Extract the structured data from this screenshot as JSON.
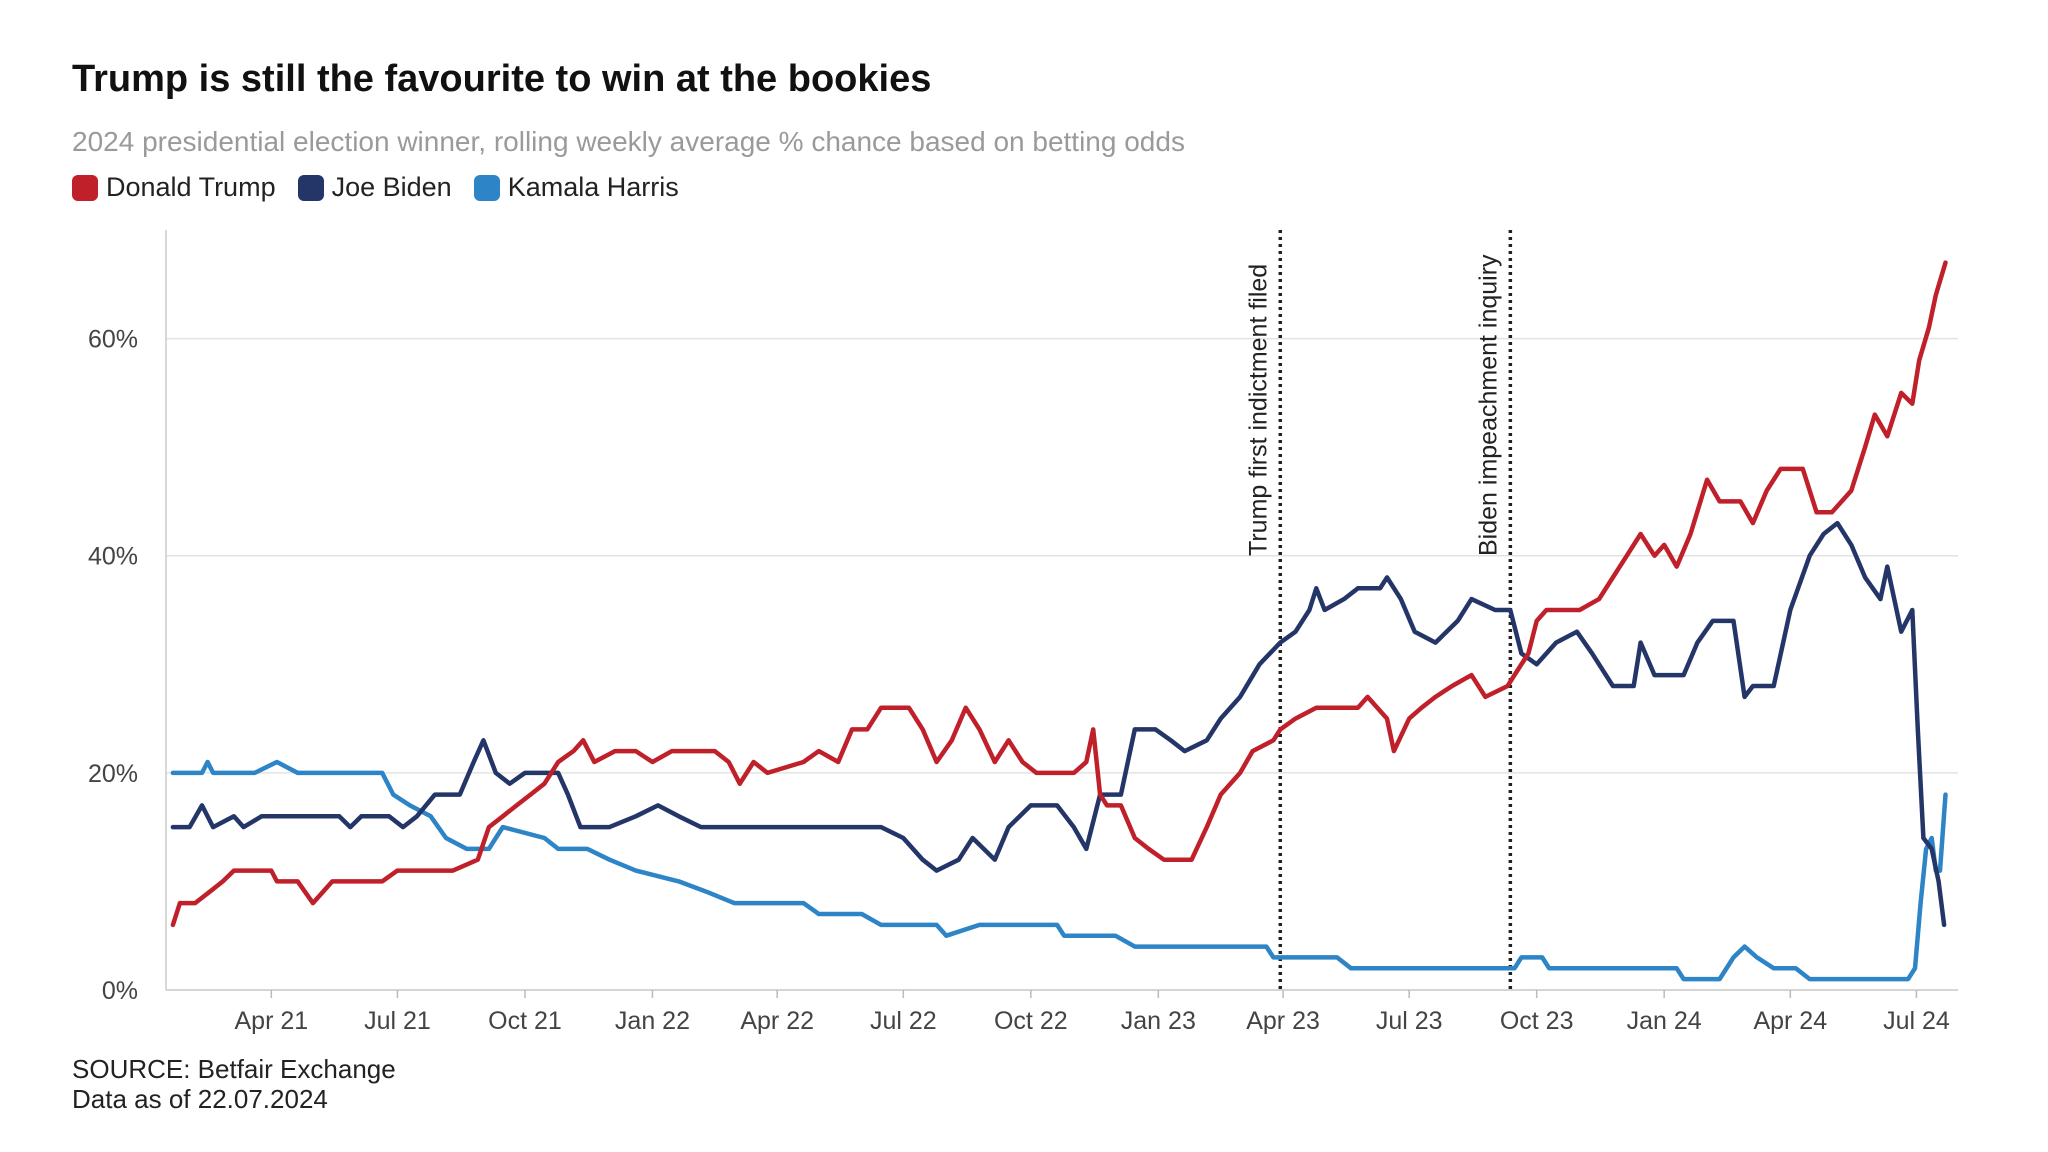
{
  "title": "Trump is still the favourite to win at the bookies",
  "subtitle": "2024 presidential election winner, rolling weekly average % chance based on betting odds",
  "source_line1": "SOURCE: Betfair Exchange",
  "source_line2": "Data as of 22.07.2024",
  "colors": {
    "trump": "#c0202a",
    "biden": "#243568",
    "harris": "#2d84c6"
  },
  "chart_data": {
    "type": "line",
    "title": "Trump is still the favourite to win at the bookies",
    "subtitle": "2024 presidential election winner, rolling weekly average % chance based on betting odds",
    "x_type": "date",
    "xlim": [
      "2021-01-15",
      "2024-07-31"
    ],
    "ylim": [
      0,
      70
    ],
    "yticks": [
      0,
      20,
      40,
      60
    ],
    "ytick_labels": [
      "0%",
      "20%",
      "40%",
      "60%"
    ],
    "xticks": [
      "2021-04-01",
      "2021-07-01",
      "2021-10-01",
      "2022-01-01",
      "2022-04-01",
      "2022-07-01",
      "2022-10-01",
      "2023-01-01",
      "2023-04-01",
      "2023-07-01",
      "2023-10-01",
      "2024-01-01",
      "2024-04-01",
      "2024-07-01"
    ],
    "xtick_labels": [
      "Apr 21",
      "Jul 21",
      "Oct 21",
      "Jan 22",
      "Apr 22",
      "Jul 22",
      "Oct 22",
      "Jan 23",
      "Apr 23",
      "Jul 23",
      "Oct 23",
      "Jan 24",
      "Apr 24",
      "Jul 24"
    ],
    "grid": "horizontal",
    "legend_position": "top-left",
    "annotations": [
      {
        "date": "2023-03-30",
        "label": "Trump first indictment filed"
      },
      {
        "date": "2023-09-12",
        "label": "Biden impeachment inquiry"
      }
    ],
    "series": [
      {
        "name": "Donald Trump",
        "color": "#c0202a",
        "points": [
          [
            "2021-01-20",
            6
          ],
          [
            "2021-01-25",
            8
          ],
          [
            "2021-02-05",
            8
          ],
          [
            "2021-02-15",
            9
          ],
          [
            "2021-02-25",
            10
          ],
          [
            "2021-03-05",
            11
          ],
          [
            "2021-04-01",
            11
          ],
          [
            "2021-04-05",
            10
          ],
          [
            "2021-04-20",
            10
          ],
          [
            "2021-05-01",
            8
          ],
          [
            "2021-05-15",
            10
          ],
          [
            "2021-06-01",
            10
          ],
          [
            "2021-06-20",
            10
          ],
          [
            "2021-07-01",
            11
          ],
          [
            "2021-07-25",
            11
          ],
          [
            "2021-08-10",
            11
          ],
          [
            "2021-08-28",
            12
          ],
          [
            "2021-09-05",
            15
          ],
          [
            "2021-09-15",
            16
          ],
          [
            "2021-09-25",
            17
          ],
          [
            "2021-10-05",
            18
          ],
          [
            "2021-10-15",
            19
          ],
          [
            "2021-10-25",
            21
          ],
          [
            "2021-11-05",
            22
          ],
          [
            "2021-11-12",
            23
          ],
          [
            "2021-11-20",
            21
          ],
          [
            "2021-12-05",
            22
          ],
          [
            "2021-12-20",
            22
          ],
          [
            "2022-01-01",
            21
          ],
          [
            "2022-01-15",
            22
          ],
          [
            "2022-02-15",
            22
          ],
          [
            "2022-02-25",
            21
          ],
          [
            "2022-03-05",
            19
          ],
          [
            "2022-03-15",
            21
          ],
          [
            "2022-03-25",
            20
          ],
          [
            "2022-04-20",
            21
          ],
          [
            "2022-05-01",
            22
          ],
          [
            "2022-05-15",
            21
          ],
          [
            "2022-05-25",
            24
          ],
          [
            "2022-06-05",
            24
          ],
          [
            "2022-06-15",
            26
          ],
          [
            "2022-07-05",
            26
          ],
          [
            "2022-07-15",
            24
          ],
          [
            "2022-07-25",
            21
          ],
          [
            "2022-08-05",
            23
          ],
          [
            "2022-08-15",
            26
          ],
          [
            "2022-08-25",
            24
          ],
          [
            "2022-09-05",
            21
          ],
          [
            "2022-09-15",
            23
          ],
          [
            "2022-09-25",
            21
          ],
          [
            "2022-10-05",
            20
          ],
          [
            "2022-10-20",
            20
          ],
          [
            "2022-11-01",
            20
          ],
          [
            "2022-11-10",
            21
          ],
          [
            "2022-11-15",
            24
          ],
          [
            "2022-11-20",
            18
          ],
          [
            "2022-11-25",
            17
          ],
          [
            "2022-12-05",
            17
          ],
          [
            "2022-12-15",
            14
          ],
          [
            "2022-12-25",
            13
          ],
          [
            "2023-01-05",
            12
          ],
          [
            "2023-01-25",
            12
          ],
          [
            "2023-02-05",
            15
          ],
          [
            "2023-02-15",
            18
          ],
          [
            "2023-03-01",
            20
          ],
          [
            "2023-03-10",
            22
          ],
          [
            "2023-03-25",
            23
          ],
          [
            "2023-03-30",
            24
          ],
          [
            "2023-04-10",
            25
          ],
          [
            "2023-04-25",
            26
          ],
          [
            "2023-05-25",
            26
          ],
          [
            "2023-06-01",
            27
          ],
          [
            "2023-06-15",
            25
          ],
          [
            "2023-06-20",
            22
          ],
          [
            "2023-07-01",
            25
          ],
          [
            "2023-07-10",
            26
          ],
          [
            "2023-07-20",
            27
          ],
          [
            "2023-08-01",
            28
          ],
          [
            "2023-08-15",
            29
          ],
          [
            "2023-08-25",
            27
          ],
          [
            "2023-09-10",
            28
          ],
          [
            "2023-09-15",
            29
          ],
          [
            "2023-09-25",
            31
          ],
          [
            "2023-10-01",
            34
          ],
          [
            "2023-10-08",
            35
          ],
          [
            "2023-11-01",
            35
          ],
          [
            "2023-11-15",
            36
          ],
          [
            "2023-11-25",
            38
          ],
          [
            "2023-12-05",
            40
          ],
          [
            "2023-12-15",
            42
          ],
          [
            "2023-12-25",
            40
          ],
          [
            "2024-01-01",
            41
          ],
          [
            "2024-01-10",
            39
          ],
          [
            "2024-01-20",
            42
          ],
          [
            "2024-02-01",
            47
          ],
          [
            "2024-02-10",
            45
          ],
          [
            "2024-02-25",
            45
          ],
          [
            "2024-03-05",
            43
          ],
          [
            "2024-03-15",
            46
          ],
          [
            "2024-03-25",
            48
          ],
          [
            "2024-04-10",
            48
          ],
          [
            "2024-04-20",
            44
          ],
          [
            "2024-05-01",
            44
          ],
          [
            "2024-05-15",
            46
          ],
          [
            "2024-05-25",
            50
          ],
          [
            "2024-06-01",
            53
          ],
          [
            "2024-06-10",
            51
          ],
          [
            "2024-06-20",
            55
          ],
          [
            "2024-06-28",
            54
          ],
          [
            "2024-07-03",
            58
          ],
          [
            "2024-07-10",
            61
          ],
          [
            "2024-07-15",
            64
          ],
          [
            "2024-07-22",
            67
          ]
        ]
      },
      {
        "name": "Joe Biden",
        "color": "#243568",
        "points": [
          [
            "2021-01-20",
            15
          ],
          [
            "2021-02-01",
            15
          ],
          [
            "2021-02-10",
            17
          ],
          [
            "2021-02-18",
            15
          ],
          [
            "2021-03-05",
            16
          ],
          [
            "2021-03-12",
            15
          ],
          [
            "2021-03-25",
            16
          ],
          [
            "2021-05-20",
            16
          ],
          [
            "2021-05-28",
            15
          ],
          [
            "2021-06-05",
            16
          ],
          [
            "2021-06-25",
            16
          ],
          [
            "2021-07-05",
            15
          ],
          [
            "2021-07-15",
            16
          ],
          [
            "2021-07-28",
            18
          ],
          [
            "2021-08-15",
            18
          ],
          [
            "2021-08-25",
            21
          ],
          [
            "2021-09-01",
            23
          ],
          [
            "2021-09-10",
            20
          ],
          [
            "2021-09-20",
            19
          ],
          [
            "2021-10-01",
            20
          ],
          [
            "2021-10-25",
            20
          ],
          [
            "2021-11-01",
            18
          ],
          [
            "2021-11-10",
            15
          ],
          [
            "2021-12-01",
            15
          ],
          [
            "2021-12-20",
            16
          ],
          [
            "2022-01-05",
            17
          ],
          [
            "2022-01-20",
            16
          ],
          [
            "2022-02-05",
            15
          ],
          [
            "2022-04-15",
            15
          ],
          [
            "2022-05-01",
            15
          ],
          [
            "2022-06-15",
            15
          ],
          [
            "2022-07-01",
            14
          ],
          [
            "2022-07-15",
            12
          ],
          [
            "2022-07-25",
            11
          ],
          [
            "2022-08-10",
            12
          ],
          [
            "2022-08-20",
            14
          ],
          [
            "2022-09-05",
            12
          ],
          [
            "2022-09-15",
            15
          ],
          [
            "2022-10-01",
            17
          ],
          [
            "2022-10-20",
            17
          ],
          [
            "2022-11-01",
            15
          ],
          [
            "2022-11-10",
            13
          ],
          [
            "2022-11-20",
            18
          ],
          [
            "2022-12-05",
            18
          ],
          [
            "2022-12-15",
            24
          ],
          [
            "2022-12-30",
            24
          ],
          [
            "2023-01-10",
            23
          ],
          [
            "2023-01-20",
            22
          ],
          [
            "2023-02-05",
            23
          ],
          [
            "2023-02-15",
            25
          ],
          [
            "2023-03-01",
            27
          ],
          [
            "2023-03-15",
            30
          ],
          [
            "2023-03-30",
            32
          ],
          [
            "2023-04-10",
            33
          ],
          [
            "2023-04-20",
            35
          ],
          [
            "2023-04-25",
            37
          ],
          [
            "2023-05-01",
            35
          ],
          [
            "2023-05-15",
            36
          ],
          [
            "2023-05-25",
            37
          ],
          [
            "2023-06-10",
            37
          ],
          [
            "2023-06-15",
            38
          ],
          [
            "2023-06-25",
            36
          ],
          [
            "2023-07-05",
            33
          ],
          [
            "2023-07-20",
            32
          ],
          [
            "2023-08-05",
            34
          ],
          [
            "2023-08-15",
            36
          ],
          [
            "2023-09-01",
            35
          ],
          [
            "2023-09-12",
            35
          ],
          [
            "2023-09-20",
            31
          ],
          [
            "2023-10-01",
            30
          ],
          [
            "2023-10-15",
            32
          ],
          [
            "2023-10-30",
            33
          ],
          [
            "2023-11-10",
            31
          ],
          [
            "2023-11-25",
            28
          ],
          [
            "2023-12-10",
            28
          ],
          [
            "2023-12-15",
            32
          ],
          [
            "2023-12-25",
            29
          ],
          [
            "2024-01-15",
            29
          ],
          [
            "2024-01-25",
            32
          ],
          [
            "2024-02-05",
            34
          ],
          [
            "2024-02-20",
            34
          ],
          [
            "2024-02-28",
            27
          ],
          [
            "2024-03-05",
            28
          ],
          [
            "2024-03-20",
            28
          ],
          [
            "2024-04-01",
            35
          ],
          [
            "2024-04-15",
            40
          ],
          [
            "2024-04-25",
            42
          ],
          [
            "2024-05-05",
            43
          ],
          [
            "2024-05-15",
            41
          ],
          [
            "2024-05-25",
            38
          ],
          [
            "2024-06-05",
            36
          ],
          [
            "2024-06-10",
            39
          ],
          [
            "2024-06-20",
            33
          ],
          [
            "2024-06-28",
            35
          ],
          [
            "2024-07-02",
            24
          ],
          [
            "2024-07-06",
            14
          ],
          [
            "2024-07-12",
            13
          ],
          [
            "2024-07-17",
            10
          ],
          [
            "2024-07-21",
            6
          ]
        ]
      },
      {
        "name": "Kamala Harris",
        "color": "#2d84c6",
        "points": [
          [
            "2021-01-20",
            20
          ],
          [
            "2021-02-10",
            20
          ],
          [
            "2021-02-14",
            21
          ],
          [
            "2021-02-18",
            20
          ],
          [
            "2021-03-20",
            20
          ],
          [
            "2021-04-05",
            21
          ],
          [
            "2021-04-20",
            20
          ],
          [
            "2021-06-20",
            20
          ],
          [
            "2021-06-28",
            18
          ],
          [
            "2021-07-10",
            17
          ],
          [
            "2021-07-25",
            16
          ],
          [
            "2021-08-05",
            14
          ],
          [
            "2021-08-20",
            13
          ],
          [
            "2021-09-05",
            13
          ],
          [
            "2021-09-10",
            14
          ],
          [
            "2021-09-15",
            15
          ],
          [
            "2021-10-15",
            14
          ],
          [
            "2021-10-25",
            13
          ],
          [
            "2021-11-15",
            13
          ],
          [
            "2021-12-01",
            12
          ],
          [
            "2021-12-20",
            11
          ],
          [
            "2022-01-20",
            10
          ],
          [
            "2022-02-10",
            9
          ],
          [
            "2022-03-01",
            8
          ],
          [
            "2022-04-20",
            8
          ],
          [
            "2022-05-01",
            7
          ],
          [
            "2022-06-01",
            7
          ],
          [
            "2022-06-15",
            6
          ],
          [
            "2022-07-25",
            6
          ],
          [
            "2022-08-01",
            5
          ],
          [
            "2022-08-25",
            6
          ],
          [
            "2022-10-20",
            6
          ],
          [
            "2022-10-25",
            5
          ],
          [
            "2022-12-01",
            5
          ],
          [
            "2022-12-15",
            4
          ],
          [
            "2023-02-15",
            4
          ],
          [
            "2023-03-20",
            4
          ],
          [
            "2023-03-25",
            3
          ],
          [
            "2023-05-10",
            3
          ],
          [
            "2023-05-20",
            2
          ],
          [
            "2023-09-15",
            2
          ],
          [
            "2023-09-20",
            3
          ],
          [
            "2023-10-05",
            3
          ],
          [
            "2023-10-10",
            2
          ],
          [
            "2024-01-10",
            2
          ],
          [
            "2024-01-15",
            1
          ],
          [
            "2024-02-10",
            1
          ],
          [
            "2024-02-20",
            3
          ],
          [
            "2024-02-28",
            4
          ],
          [
            "2024-03-08",
            3
          ],
          [
            "2024-03-20",
            2
          ],
          [
            "2024-04-05",
            2
          ],
          [
            "2024-04-15",
            1
          ],
          [
            "2024-06-25",
            1
          ],
          [
            "2024-06-30",
            2
          ],
          [
            "2024-07-04",
            8
          ],
          [
            "2024-07-08",
            13
          ],
          [
            "2024-07-12",
            14
          ],
          [
            "2024-07-15",
            11
          ],
          [
            "2024-07-18",
            11
          ],
          [
            "2024-07-22",
            18
          ]
        ]
      }
    ]
  }
}
